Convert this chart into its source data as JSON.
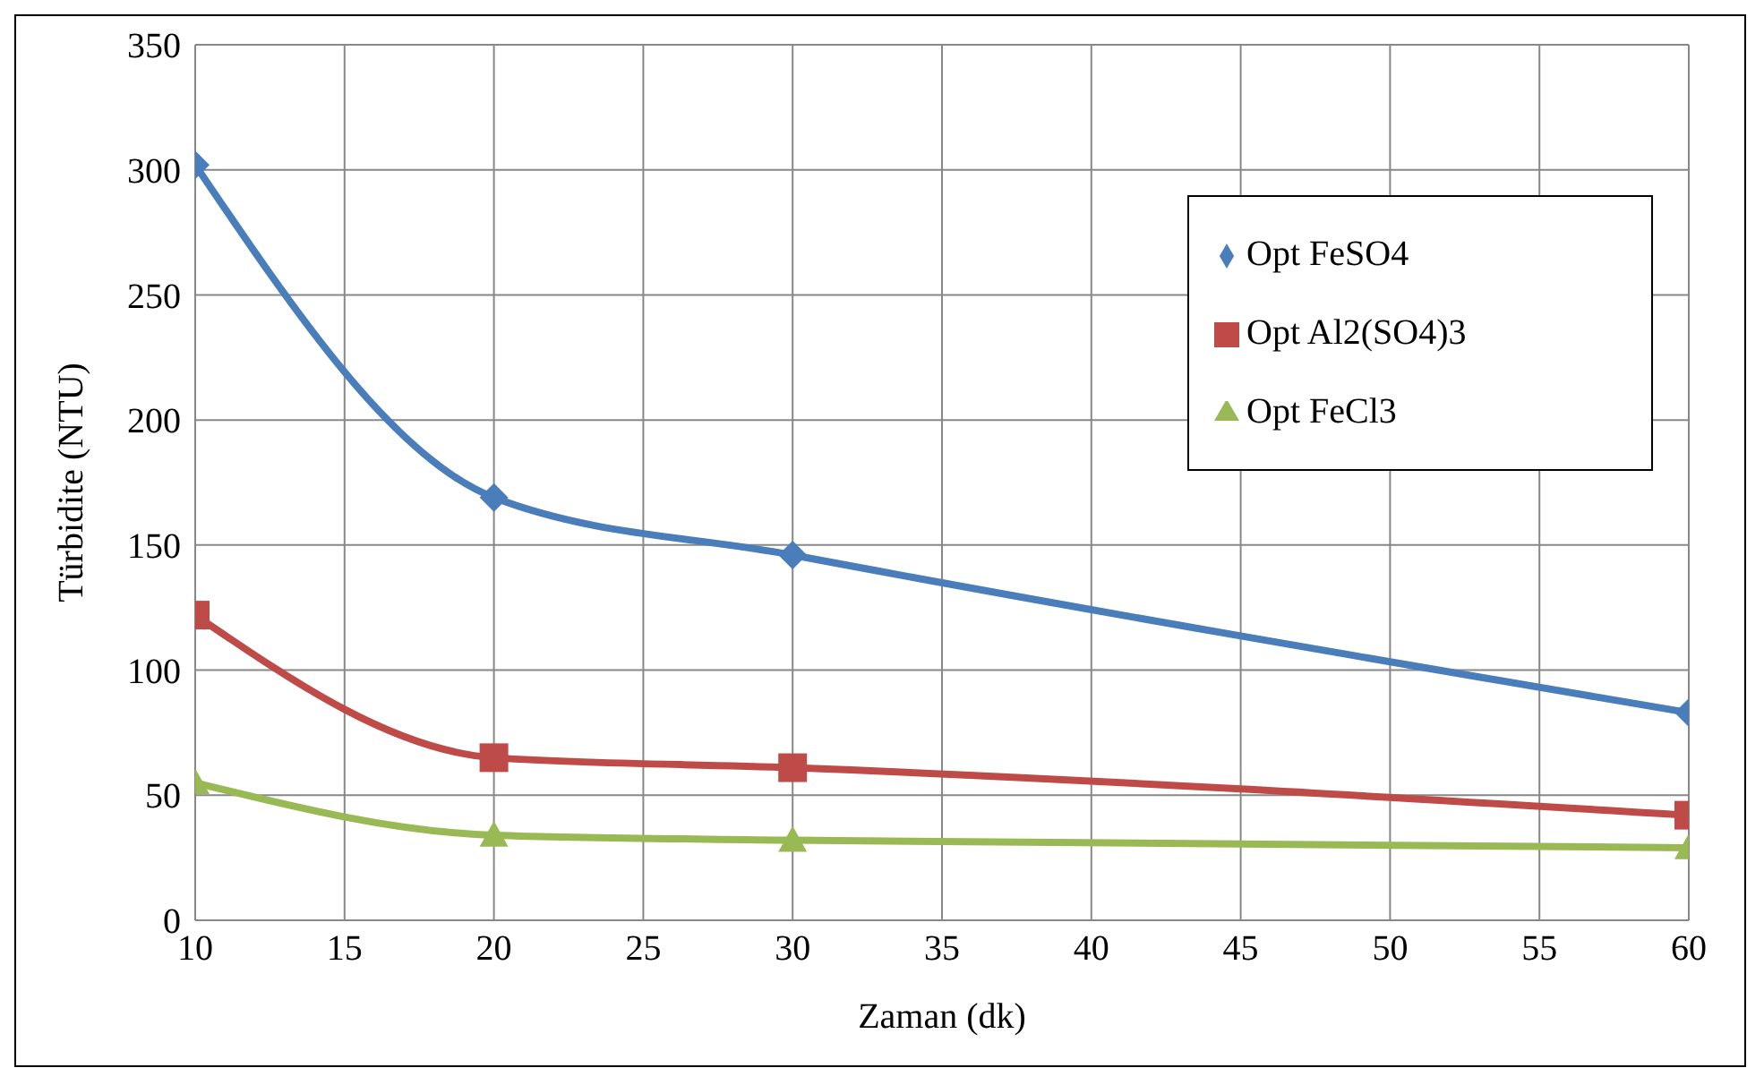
{
  "chart_data": {
    "type": "line",
    "xlabel": "Zaman (dk)",
    "ylabel": "Türbidite  (NTU)",
    "x": [
      10,
      20,
      30,
      60
    ],
    "series": [
      {
        "name": "Opt FeSO4",
        "color": "#4a7ebb",
        "marker": "diamond",
        "values": [
          302,
          169,
          146,
          83
        ]
      },
      {
        "name": "Opt Al2(SO4)3",
        "color": "#be4b48",
        "marker": "square",
        "values": [
          122,
          65,
          61,
          42
        ]
      },
      {
        "name": "Opt FeCl3",
        "color": "#98b954",
        "marker": "triangle",
        "values": [
          55,
          34,
          32,
          29
        ]
      }
    ],
    "xlim": [
      10,
      60
    ],
    "xticks": [
      10,
      15,
      20,
      25,
      30,
      35,
      40,
      45,
      50,
      55,
      60
    ],
    "ylim": [
      0,
      350
    ],
    "yticks": [
      0,
      50,
      100,
      150,
      200,
      250,
      300,
      350
    ],
    "grid": true,
    "legend": "top right",
    "line_style": "solid"
  }
}
